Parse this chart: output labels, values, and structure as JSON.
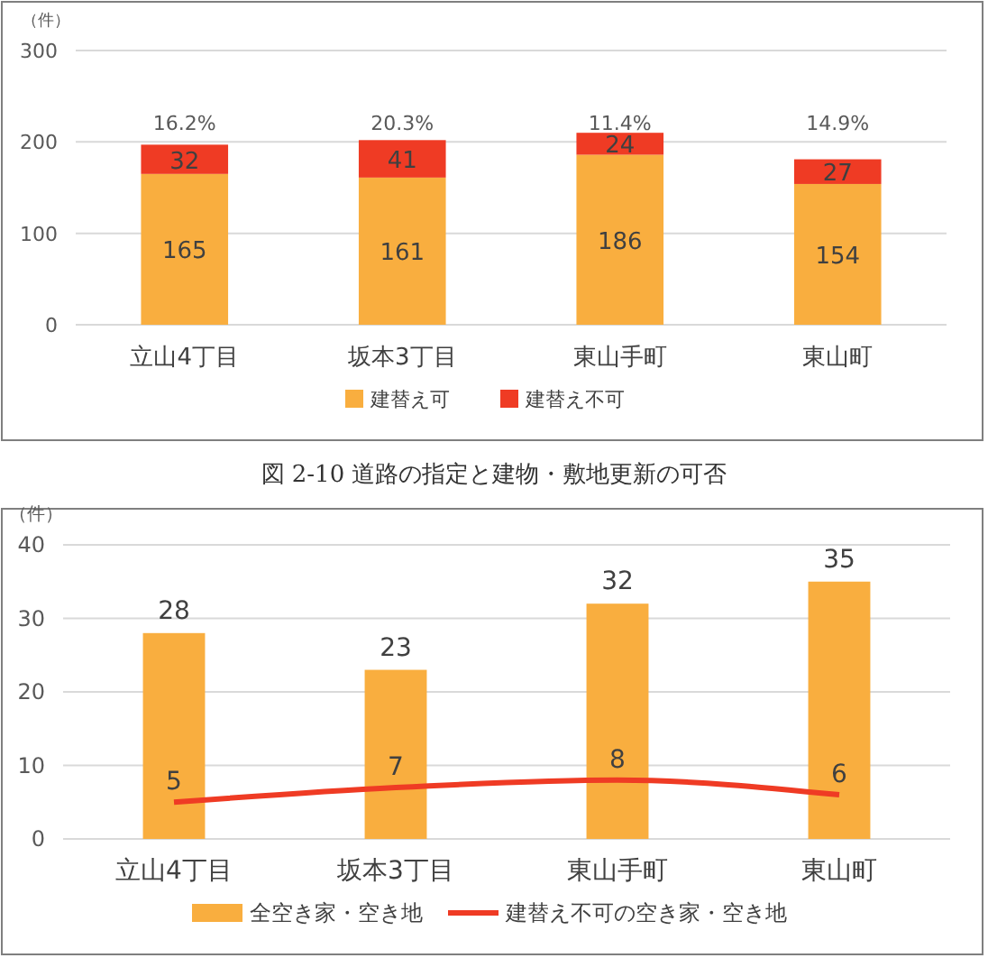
{
  "chart_data": [
    {
      "type": "bar",
      "stacked": true,
      "ylabel": "（件）",
      "categories": [
        "立山4丁目",
        "坂本3丁目",
        "東山手町",
        "東山町"
      ],
      "ylim": [
        0,
        300
      ],
      "yticks": [
        0,
        100,
        200,
        300
      ],
      "grid": "y",
      "legend": "bottom",
      "data_labels": true,
      "series": [
        {
          "name": "建替え可",
          "color": "#f9ae3f",
          "values": [
            165,
            161,
            186,
            154
          ]
        },
        {
          "name": "建替え不可",
          "color": "#ef3b24",
          "values": [
            32,
            41,
            24,
            27
          ]
        }
      ],
      "annotations": [
        "16.2%",
        "20.3%",
        "11.4%",
        "14.9%",
        "図 2-10 道路の指定と建物・敷地更新の可否"
      ]
    },
    {
      "type": "bar",
      "ylabel": "（件）",
      "categories": [
        "立山4丁目",
        "坂本3丁目",
        "東山手町",
        "東山町"
      ],
      "ylim": [
        0,
        40
      ],
      "yticks": [
        0,
        10,
        20,
        30,
        40
      ],
      "grid": "y",
      "legend": "bottom",
      "data_labels": true,
      "series": [
        {
          "name": "全空き家・空き地",
          "color": "#f9ae3f",
          "values": [
            28,
            23,
            32,
            35
          ]
        },
        {
          "name": "建替え不可の空き家・空き地",
          "type": "line",
          "color": "#ef3b24",
          "values": [
            5,
            7,
            8,
            6
          ]
        }
      ]
    }
  ]
}
